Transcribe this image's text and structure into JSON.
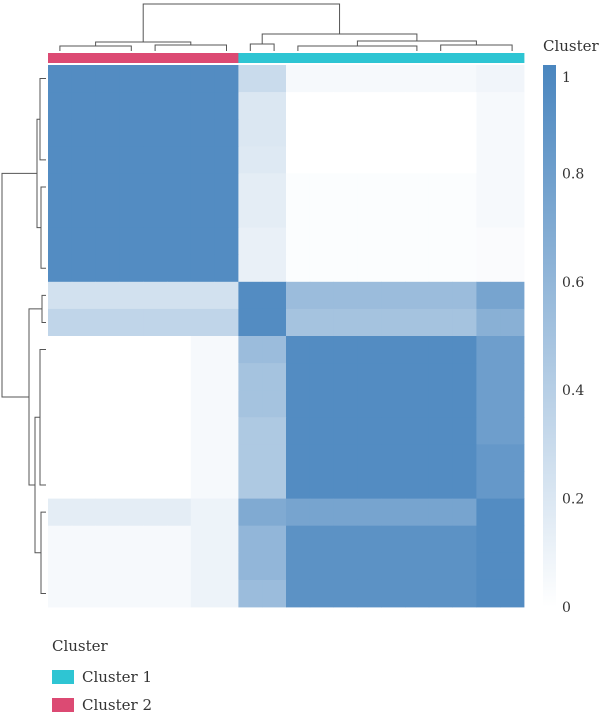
{
  "chart_data": {
    "type": "heatmap",
    "title": "",
    "colorbar": {
      "title": "Cluster",
      "ticks": [
        "1",
        "0.8",
        "0.6",
        "0.4",
        "0.2",
        "0"
      ],
      "range": [
        0,
        1
      ],
      "color_low": "#ffffff",
      "color_high": "#4a86bf"
    },
    "clusters": [
      {
        "name": "Cluster 1",
        "color": "#2ec5d3",
        "members": 12
      },
      {
        "name": "Cluster 2",
        "color": "#dc4a73",
        "members": 8
      }
    ],
    "column_annotation": [
      "Cluster 2",
      "Cluster 2",
      "Cluster 2",
      "Cluster 2",
      "Cluster 2",
      "Cluster 2",
      "Cluster 2",
      "Cluster 2",
      "Cluster 1",
      "Cluster 1",
      "Cluster 1",
      "Cluster 1",
      "Cluster 1",
      "Cluster 1",
      "Cluster 1",
      "Cluster 1",
      "Cluster 1",
      "Cluster 1",
      "Cluster 1",
      "Cluster 1"
    ],
    "matrix": [
      [
        0.95,
        0.95,
        0.95,
        0.95,
        0.95,
        0.95,
        0.95,
        0.95,
        0.3,
        0.3,
        0.05,
        0.05,
        0.05,
        0.05,
        0.05,
        0.05,
        0.05,
        0.05,
        0.08,
        0.08
      ],
      [
        0.95,
        0.95,
        0.95,
        0.95,
        0.95,
        0.95,
        0.95,
        0.95,
        0.2,
        0.2,
        0.0,
        0.0,
        0.0,
        0.0,
        0.0,
        0.0,
        0.0,
        0.0,
        0.05,
        0.05
      ],
      [
        0.95,
        0.95,
        0.95,
        0.95,
        0.95,
        0.95,
        0.95,
        0.95,
        0.2,
        0.2,
        0.0,
        0.0,
        0.0,
        0.0,
        0.0,
        0.0,
        0.0,
        0.0,
        0.05,
        0.05
      ],
      [
        0.95,
        0.95,
        0.95,
        0.95,
        0.95,
        0.95,
        0.95,
        0.95,
        0.18,
        0.18,
        0.0,
        0.0,
        0.0,
        0.0,
        0.0,
        0.0,
        0.0,
        0.0,
        0.05,
        0.05
      ],
      [
        0.95,
        0.95,
        0.95,
        0.95,
        0.95,
        0.95,
        0.95,
        0.95,
        0.15,
        0.15,
        0.02,
        0.02,
        0.02,
        0.02,
        0.02,
        0.02,
        0.02,
        0.02,
        0.05,
        0.05
      ],
      [
        0.95,
        0.95,
        0.95,
        0.95,
        0.95,
        0.95,
        0.95,
        0.95,
        0.15,
        0.15,
        0.02,
        0.02,
        0.02,
        0.02,
        0.02,
        0.02,
        0.02,
        0.02,
        0.05,
        0.05
      ],
      [
        0.95,
        0.95,
        0.95,
        0.95,
        0.95,
        0.95,
        0.95,
        0.95,
        0.12,
        0.12,
        0.02,
        0.02,
        0.02,
        0.02,
        0.02,
        0.02,
        0.02,
        0.02,
        0.03,
        0.03
      ],
      [
        0.95,
        0.95,
        0.95,
        0.95,
        0.95,
        0.95,
        0.95,
        0.95,
        0.12,
        0.12,
        0.02,
        0.02,
        0.02,
        0.02,
        0.02,
        0.02,
        0.02,
        0.02,
        0.03,
        0.03
      ],
      [
        0.25,
        0.25,
        0.25,
        0.25,
        0.25,
        0.25,
        0.25,
        0.25,
        0.95,
        0.95,
        0.55,
        0.55,
        0.55,
        0.55,
        0.55,
        0.55,
        0.55,
        0.55,
        0.75,
        0.75
      ],
      [
        0.35,
        0.35,
        0.35,
        0.35,
        0.35,
        0.35,
        0.35,
        0.35,
        0.95,
        0.95,
        0.5,
        0.5,
        0.5,
        0.5,
        0.5,
        0.5,
        0.5,
        0.5,
        0.65,
        0.65
      ],
      [
        0.0,
        0.0,
        0.0,
        0.0,
        0.0,
        0.0,
        0.05,
        0.05,
        0.55,
        0.55,
        0.95,
        0.95,
        0.95,
        0.95,
        0.95,
        0.95,
        0.95,
        0.95,
        0.8,
        0.8
      ],
      [
        0.0,
        0.0,
        0.0,
        0.0,
        0.0,
        0.0,
        0.05,
        0.05,
        0.5,
        0.5,
        0.95,
        0.95,
        0.95,
        0.95,
        0.95,
        0.95,
        0.95,
        0.95,
        0.8,
        0.8
      ],
      [
        0.0,
        0.0,
        0.0,
        0.0,
        0.0,
        0.0,
        0.05,
        0.05,
        0.5,
        0.5,
        0.95,
        0.95,
        0.95,
        0.95,
        0.95,
        0.95,
        0.95,
        0.95,
        0.8,
        0.8
      ],
      [
        0.0,
        0.0,
        0.0,
        0.0,
        0.0,
        0.0,
        0.05,
        0.05,
        0.45,
        0.45,
        0.95,
        0.95,
        0.95,
        0.95,
        0.95,
        0.95,
        0.95,
        0.95,
        0.8,
        0.8
      ],
      [
        0.0,
        0.0,
        0.0,
        0.0,
        0.0,
        0.0,
        0.05,
        0.05,
        0.45,
        0.45,
        0.95,
        0.95,
        0.95,
        0.95,
        0.95,
        0.95,
        0.95,
        0.95,
        0.85,
        0.85
      ],
      [
        0.0,
        0.0,
        0.0,
        0.0,
        0.0,
        0.0,
        0.05,
        0.05,
        0.45,
        0.45,
        0.95,
        0.95,
        0.95,
        0.95,
        0.95,
        0.95,
        0.95,
        0.95,
        0.85,
        0.85
      ],
      [
        0.15,
        0.15,
        0.15,
        0.15,
        0.15,
        0.15,
        0.1,
        0.1,
        0.7,
        0.7,
        0.75,
        0.75,
        0.75,
        0.75,
        0.75,
        0.75,
        0.75,
        0.75,
        0.95,
        0.95
      ],
      [
        0.05,
        0.05,
        0.05,
        0.05,
        0.05,
        0.05,
        0.1,
        0.1,
        0.6,
        0.6,
        0.9,
        0.9,
        0.9,
        0.9,
        0.9,
        0.9,
        0.9,
        0.9,
        0.95,
        0.95
      ],
      [
        0.05,
        0.05,
        0.05,
        0.05,
        0.05,
        0.05,
        0.1,
        0.1,
        0.6,
        0.6,
        0.9,
        0.9,
        0.9,
        0.9,
        0.9,
        0.9,
        0.9,
        0.9,
        0.95,
        0.95
      ],
      [
        0.05,
        0.05,
        0.05,
        0.05,
        0.05,
        0.05,
        0.1,
        0.1,
        0.55,
        0.55,
        0.9,
        0.9,
        0.9,
        0.9,
        0.9,
        0.9,
        0.9,
        0.9,
        0.95,
        0.95
      ]
    ],
    "legend": {
      "title": "Cluster",
      "items": [
        "Cluster 1",
        "Cluster 2"
      ],
      "placement": "bottom-left"
    }
  }
}
